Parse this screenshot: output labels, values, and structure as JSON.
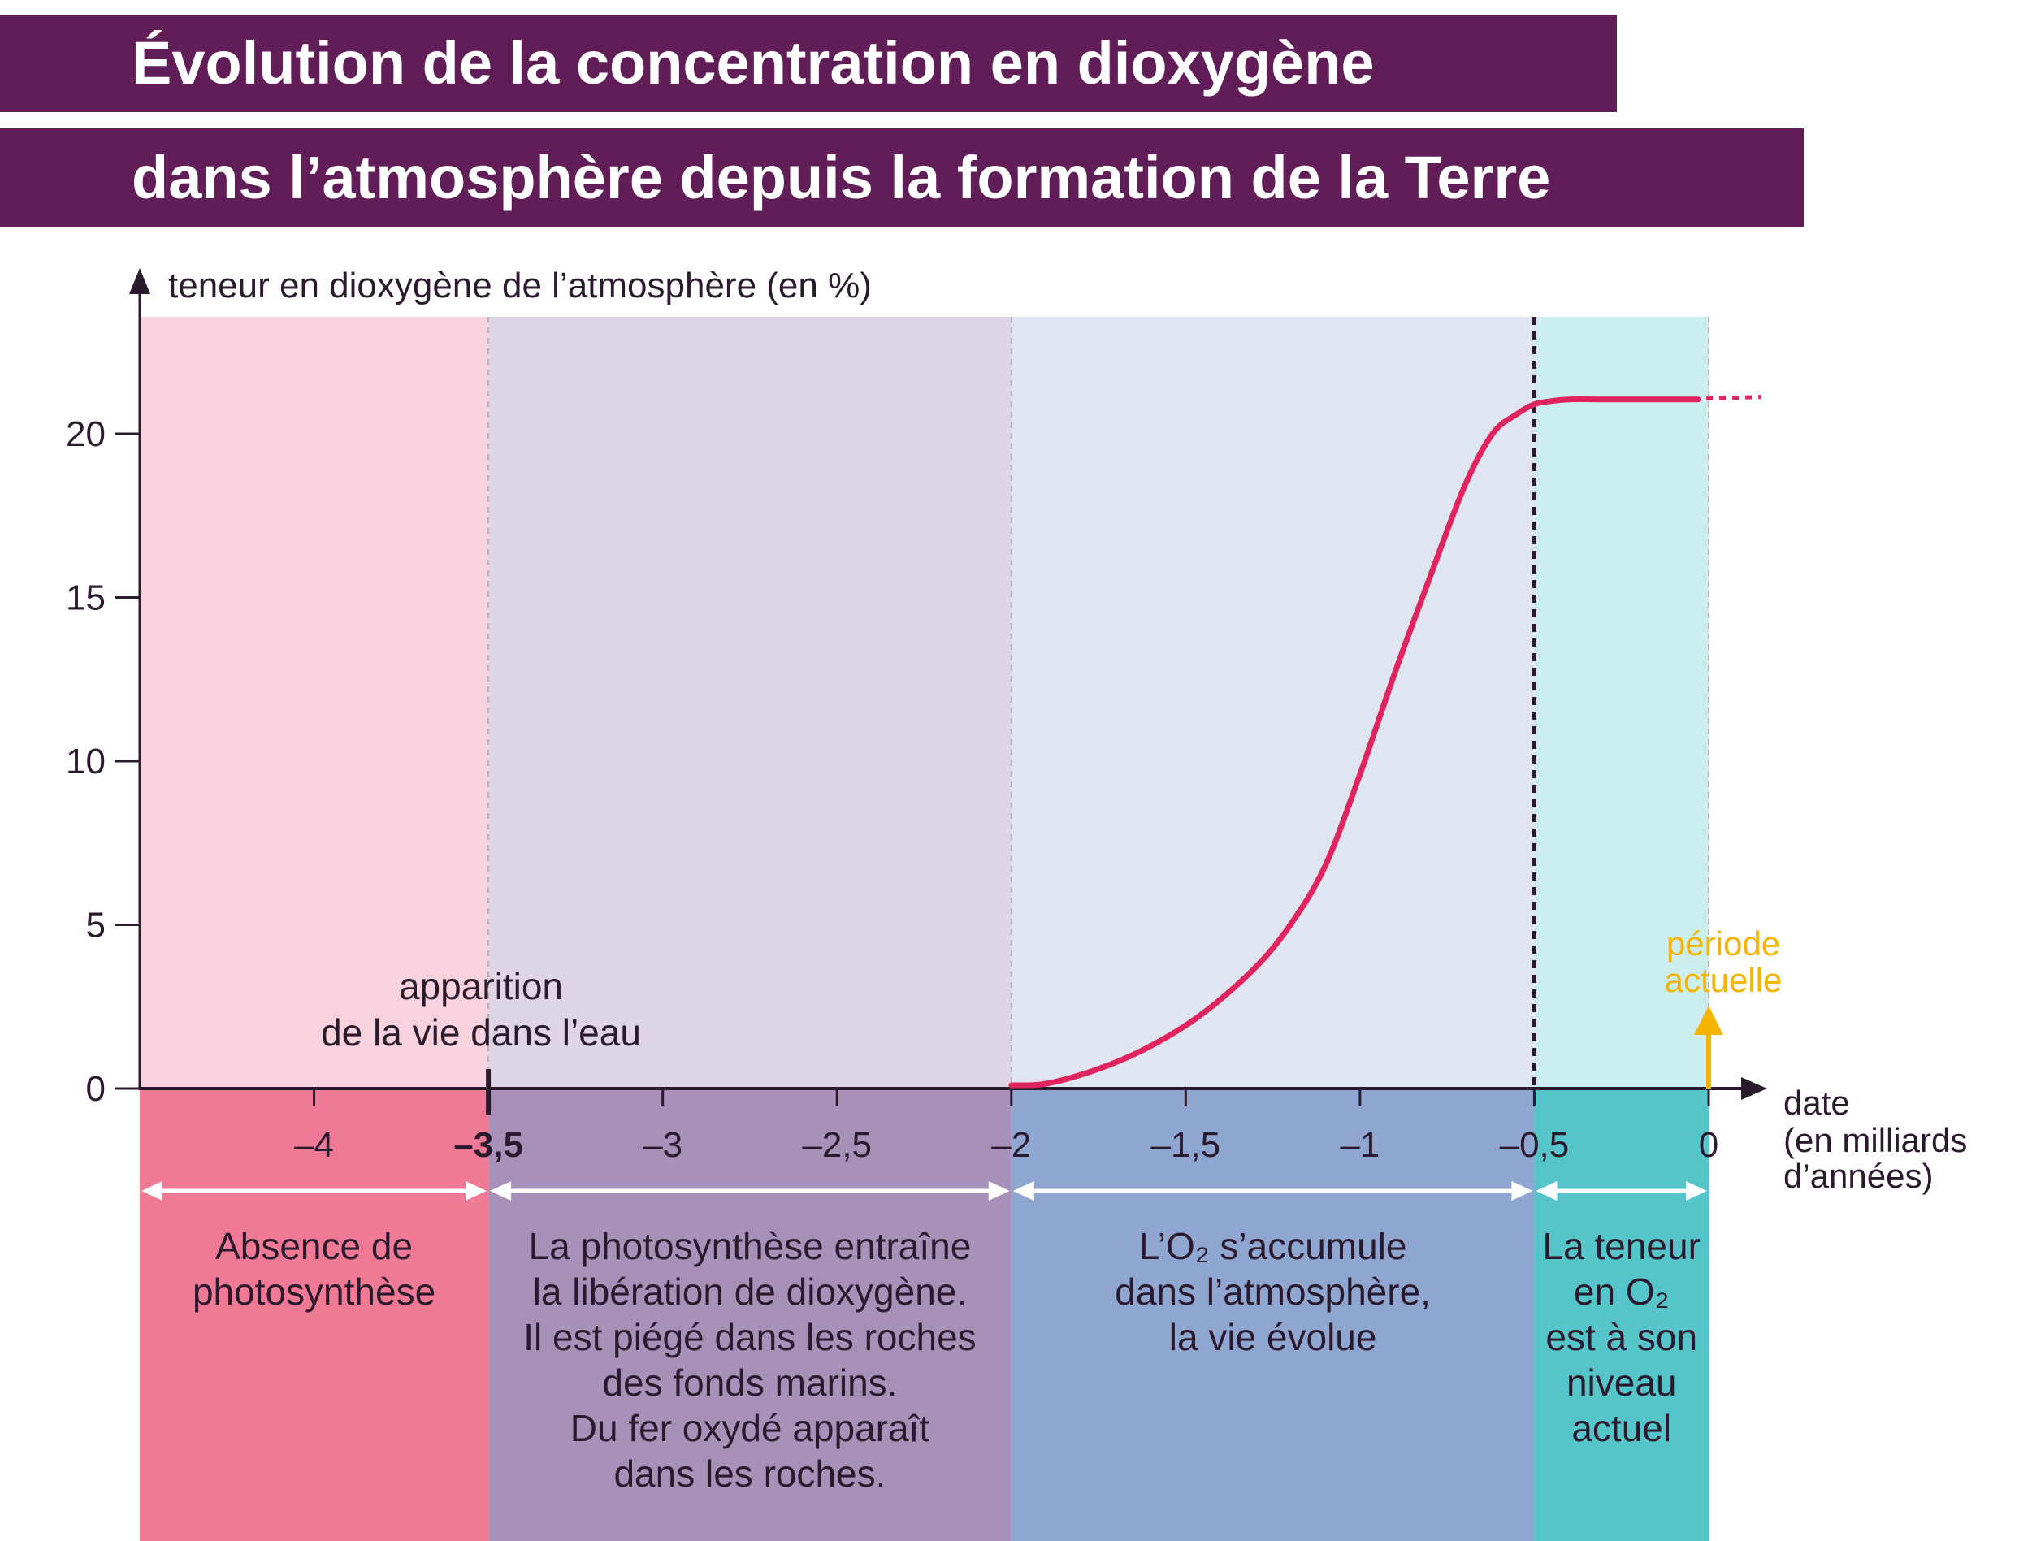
{
  "title": {
    "line1": "Évolution de la concentration en dioxygène",
    "line2": "dans l’atmosphère depuis la formation de la Terre"
  },
  "chart_data": {
    "type": "line",
    "title": "Évolution de la concentration en dioxygène dans l’atmosphère depuis la formation de la Terre",
    "ylabel": "teneur en dioxygène de l’atmosphère (en %)",
    "xlabel": "date",
    "xlabel_sub": [
      "(en milliards",
      "d’années)"
    ],
    "xlim": [
      -4.5,
      0
    ],
    "ylim": [
      0,
      23
    ],
    "x_ticks": [
      -4,
      -3.5,
      -3,
      -2.5,
      -2,
      -1.5,
      -1,
      -0.5,
      0
    ],
    "x_tick_labels": [
      "–4",
      "–3,5",
      "–3",
      "–2,5",
      "–2",
      "–1,5",
      "–1",
      "–0,5",
      "0"
    ],
    "y_ticks": [
      0,
      5,
      10,
      15,
      20
    ],
    "y_tick_labels": [
      "0",
      "5",
      "10",
      "15",
      "20"
    ],
    "grid": false,
    "legend": "none",
    "series": [
      {
        "x": [
          -2,
          -1.9,
          -1.75,
          -1.6,
          -1.45,
          -1.3,
          -1.2,
          -1.1,
          -1.0,
          -0.9,
          -0.8,
          -0.7,
          -0.62,
          -0.55,
          -0.5,
          -0.45,
          -0.4,
          -0.3,
          -0.2,
          -0.1,
          -0.03
        ],
        "y": [
          0.1,
          0.15,
          0.6,
          1.3,
          2.3,
          3.7,
          5.0,
          6.8,
          9.6,
          12.7,
          15.6,
          18.4,
          20.0,
          20.6,
          20.9,
          21.0,
          21.05,
          21.05,
          21.05,
          21.05,
          21.05
        ],
        "color": "#e0245e",
        "extension_dotted_to_x": 0.15
      }
    ],
    "periods": [
      {
        "from": -4.5,
        "to": -3.5,
        "bg": "#f8d2dc",
        "band": "#f07a96",
        "text": [
          "Absence de",
          "photosynthèse"
        ]
      },
      {
        "from": -3.5,
        "to": -2,
        "bg": "#ded6e4",
        "band": "#a891b8",
        "text": [
          "La photosynthèse entraîne",
          "la libération de dioxygène.",
          "Il est piégé dans les roches",
          "des fonds marins.",
          "Du fer oxydé apparaît",
          "dans les roches."
        ]
      },
      {
        "from": -2,
        "to": -0.5,
        "bg": "#e0e5f2",
        "band": "#8fa6d0",
        "text": [
          "L’O₂ s’accumule",
          "dans l’atmosphère,",
          "la vie évolue"
        ]
      },
      {
        "from": -0.5,
        "to": 0,
        "bg": "#cdeeee",
        "band": "#56c5c9",
        "text": [
          "La teneur",
          "en O₂",
          "est à son",
          "niveau",
          "actuel"
        ]
      }
    ],
    "annotations": [
      {
        "text": [
          "apparition",
          "de la vie dans l’eau"
        ],
        "x": -3.5
      },
      {
        "text": [
          "période",
          "actuelle"
        ],
        "x": 0,
        "color": "#f5b400"
      }
    ],
    "colors": {
      "axis": "#2b1a2e",
      "curve": "#e0245e",
      "arrow_present": "#f5b400",
      "title_bg": "#611d57",
      "divider": "#b4b4c2"
    }
  }
}
